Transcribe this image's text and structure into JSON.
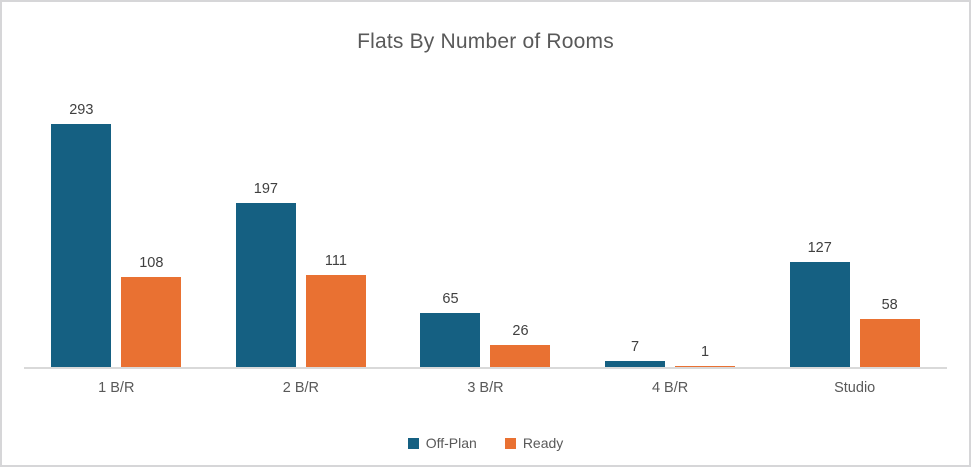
{
  "title": "Flats By Number of Rooms",
  "colors": {
    "series_off_plan": "#156082",
    "series_ready": "#E97132",
    "axis_line": "#D9D9D9",
    "frame_border": "#D6D6D8",
    "title_text": "#595959",
    "data_label_text": "#404040",
    "category_text": "#595959",
    "background": "#FFFFFF"
  },
  "legend": {
    "position": "bottom",
    "items": [
      {
        "label": "Off-Plan",
        "color": "#156082"
      },
      {
        "label": "Ready",
        "color": "#E97132"
      }
    ]
  },
  "chart_data": {
    "type": "bar",
    "title": "Flats By Number of Rooms",
    "categories": [
      "1 B/R",
      "2 B/R",
      "3 B/R",
      "4 B/R",
      "Studio"
    ],
    "series": [
      {
        "name": "Off-Plan",
        "color": "#156082",
        "values": [
          293,
          197,
          65,
          7,
          127
        ]
      },
      {
        "name": "Ready",
        "color": "#E97132",
        "values": [
          108,
          111,
          26,
          1,
          58
        ]
      }
    ],
    "data_labels": true,
    "legend_position": "bottom",
    "xlabel": "",
    "ylabel": "",
    "ylim": [
      0,
      350
    ],
    "grid": false,
    "y_axis_visible": false
  }
}
